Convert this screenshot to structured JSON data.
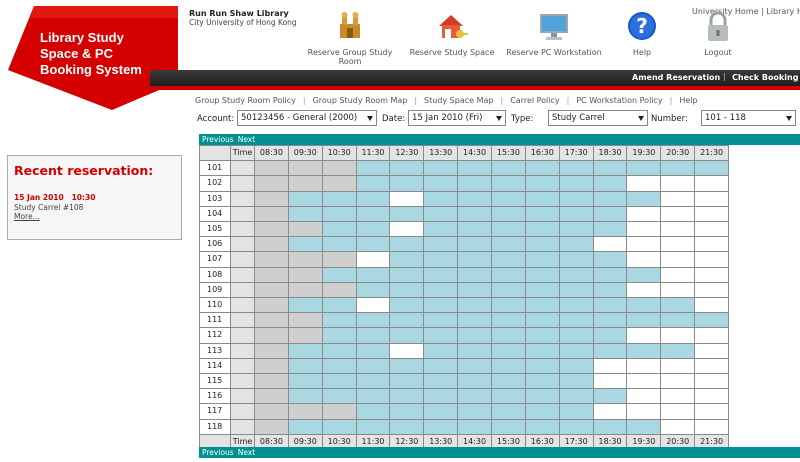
{
  "app": {
    "title_lines": [
      "Library Study",
      "Space & PC",
      "Booking System"
    ],
    "library_name": "Run Run Shaw Library",
    "university": "City University of Hong Kong"
  },
  "top_links": "University Home  |  Library H",
  "nav": [
    {
      "id": "group",
      "label": "Reserve Group Study Room",
      "icon": "group-study-room-icon"
    },
    {
      "id": "space",
      "label": "Reserve Study Space",
      "icon": "study-space-house-icon"
    },
    {
      "id": "pc",
      "label": "Reserve PC Workstation",
      "icon": "pc-monitor-icon"
    },
    {
      "id": "help",
      "label": "Help",
      "icon": "help-question-icon"
    },
    {
      "id": "logout",
      "label": "Logout",
      "icon": "padlock-icon"
    }
  ],
  "menubar": {
    "amend": "Amend Reservation",
    "sep": "|",
    "check": "Check Booking Ac"
  },
  "policy_links": [
    "Group Study Room Policy",
    "Group Study Room Map",
    "Study Space Map",
    "Carrel Policy",
    "PC Workstation Policy",
    "Help"
  ],
  "filters": {
    "account_label": "Account:",
    "account_value": "50123456 - General (2000)",
    "date_label": "Date:",
    "date_value": "15 Jan 2010 (Fri)",
    "type_label": "Type:",
    "type_value": "Study Carrel",
    "number_label": "Number:",
    "number_value": "101 - 118"
  },
  "recent": {
    "title": "Recent reservation:",
    "date": "15 Jan 2010",
    "time": "10:30",
    "item": "Study Carrel #108",
    "more": "More..."
  },
  "grid": {
    "prev_label": "Previous",
    "next_label": "Next",
    "time_header": "Time",
    "times": [
      "08:30",
      "09:30",
      "10:30",
      "11:30",
      "12:30",
      "13:30",
      "14:30",
      "15:30",
      "16:30",
      "17:30",
      "18:30",
      "19:30",
      "20:30",
      "21:30"
    ],
    "legend_status": {
      "A": "available",
      "P": "unavailable",
      "B": "booked"
    },
    "rows": [
      {
        "room": "101",
        "slots": "PPPAAAAAAAAAAA"
      },
      {
        "room": "102",
        "slots": "PPPAAAAAAAABBB"
      },
      {
        "room": "103",
        "slots": "PAAABAAAAAAABB"
      },
      {
        "room": "104",
        "slots": "PAAAAAAAAAABBB"
      },
      {
        "room": "105",
        "slots": "PPAABAAAAAABBB"
      },
      {
        "room": "106",
        "slots": "PAAAAAAAAABBBB"
      },
      {
        "room": "107",
        "slots": "PPPBAAAAAAABBB"
      },
      {
        "room": "108",
        "slots": "PPAAAAAAAAAABB"
      },
      {
        "room": "109",
        "slots": "PPPAAAAAAAABBB"
      },
      {
        "room": "110",
        "slots": "PAABAAAAAAAAAB"
      },
      {
        "room": "111",
        "slots": "PPAAAAAAAAAAAA"
      },
      {
        "room": "112",
        "slots": "PPAAAAAAAAABBB"
      },
      {
        "room": "113",
        "slots": "PAAABAAAAAAAAB"
      },
      {
        "room": "114",
        "slots": "PAAAAAAAAABBBB"
      },
      {
        "room": "115",
        "slots": "PAAAAAAAAABBBB"
      },
      {
        "room": "116",
        "slots": "PAAAAAAAAAABBB"
      },
      {
        "room": "117",
        "slots": "PPPAAAAAAABBBB"
      },
      {
        "room": "118",
        "slots": "PAAAAAAAAAAABB"
      }
    ]
  },
  "colors": {
    "brand_red": "#d40000",
    "teal": "#009090",
    "available": "#a9d8e3",
    "unavailable": "#cfcfcf",
    "booked": "#ffffff"
  }
}
